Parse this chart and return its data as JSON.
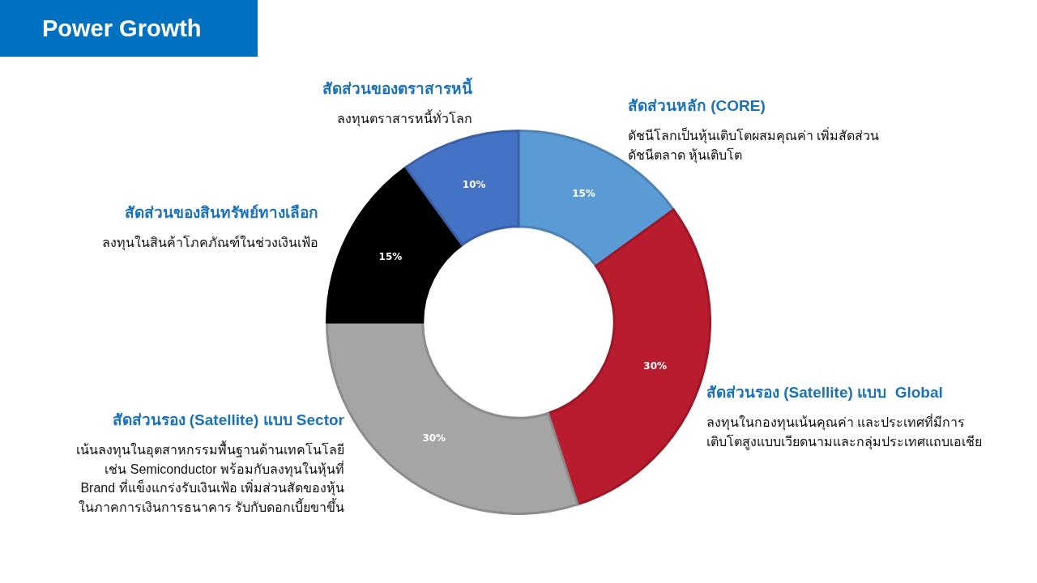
{
  "chart_data": {
    "type": "donut",
    "title": "Power Growth",
    "categories": [
      "สัดส่วนหลัก (CORE)",
      "สัดส่วนรอง (Satellite) แบบ  Global",
      "สัดส่วนรอง (Satellite) แบบ Sector",
      "สัดส่วนของสินทรัพย์ทางเลือก",
      "สัดส่วนของตราสารหนี้"
    ],
    "values": [
      15,
      30,
      30,
      15,
      10
    ],
    "colors": [
      "#5b9bd5",
      "#b91c2e",
      "#a5a5a5",
      "#000000",
      "#4472c4"
    ],
    "value_labels": [
      "15%",
      "30%",
      "30%",
      "15%",
      "10%"
    ],
    "annotations": [
      "ดัชนีโลกเป็นหุ้นเติบโตผสมคุณค่า เพิ่มสัดส่วน\nดัชนีตลาด หุ้นเติบโต",
      "ลงทุนในกองทุนเน้นคุณค่า และประเทศที่มีการ\nเติบโตสูงแบบเวียดนามและกลุ่มประเทศแถบเอเชีย",
      "เน้นลงทุนในอุตสาหกรรมพื้นฐานด้านเทคโนโลยี\nเช่น Semiconductor พร้อมกับลงทุนในหุ้นที่\nBrand ที่แข็งแกร่งรับเงินเฟ้อ เพิ่มส่วนสัดของหุ้น\nในภาคการเงินการธนาคาร รับกับดอกเบี้ยขาขึ้น",
      "ลงทุนในสินค้าโภคภัณฑ์ในช่วงเงินเฟ้อ",
      "ลงทุนตราสารหนี้ทั่วโลก"
    ],
    "legend": false
  }
}
